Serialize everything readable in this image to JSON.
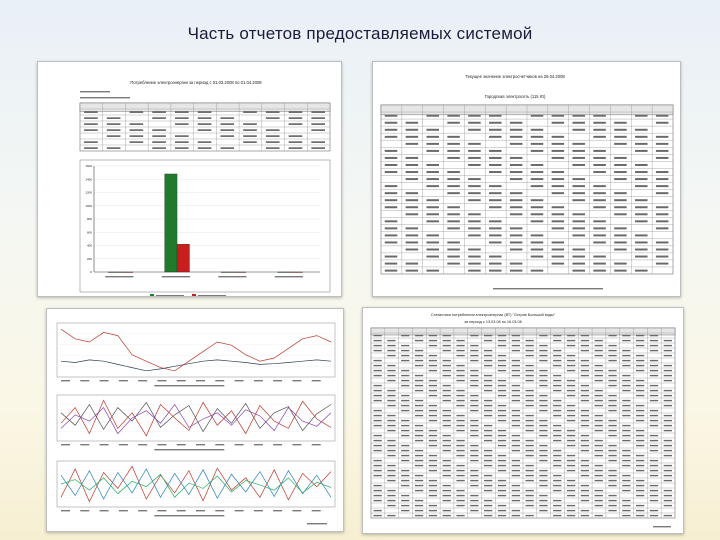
{
  "slide": {
    "title": "Часть отчетов предоставляемых системой"
  },
  "doc1": {
    "title": "Потребление электроэнергии за период с 01.03.2008 по 01.04.2008",
    "chart_data": {
      "type": "bar",
      "categories": [
        "c1",
        "c2",
        "c3",
        "c4"
      ],
      "series": [
        {
          "values": [
            0,
            1480,
            0,
            0
          ],
          "color": "#1f7a2a"
        },
        {
          "values": [
            0,
            420,
            0,
            0
          ],
          "color": "#c81e1e"
        }
      ],
      "ylim": [
        0,
        1600
      ]
    }
  },
  "doc2": {
    "title": "Текущее значение электросчетчиков на 28.04.2008",
    "subtitle": "Городская электросеть (115 Ю)"
  },
  "doc3": {
    "chart_data": [
      {
        "type": "line",
        "series": [
          {
            "values": [
              520,
              505,
              500,
              515,
              510,
              480,
              470,
              460,
              455,
              470,
              485,
              500,
              495,
              480,
              470,
              475,
              490,
              505,
              510,
              500
            ],
            "color": "#c0392b"
          },
          {
            "values": [
              470,
              468,
              472,
              470,
              465,
              460,
              455,
              458,
              462,
              466,
              470,
              472,
              470,
              468,
              465,
              466,
              468,
              470,
              472,
              470
            ],
            "color": "#2c3e50"
          }
        ]
      },
      {
        "type": "line",
        "series": [
          {
            "values": [
              40,
              55,
              30,
              62,
              35,
              50,
              28,
              58,
              45,
              33,
              60,
              38,
              52,
              30,
              57,
              42,
              35,
              61,
              44,
              36
            ],
            "color": "#c0392b"
          },
          {
            "values": [
              50,
              38,
              58,
              34,
              55,
              42,
              60,
              36,
              48,
              57,
              32,
              54,
              40,
              59,
              35,
              50,
              56,
              33,
              49,
              58
            ],
            "color": "#555555"
          },
          {
            "values": [
              35,
              48,
              42,
              55,
              30,
              45,
              52,
              40,
              58,
              36,
              44,
              50,
              38,
              53,
              47,
              33,
              55,
              42,
              37,
              50
            ],
            "color": "#8e44ad"
          }
        ]
      },
      {
        "type": "line",
        "series": [
          {
            "values": [
              30,
              62,
              25,
              58,
              40,
              65,
              28,
              55,
              35,
              60,
              26,
              63,
              38,
              52,
              30,
              61,
              27,
              57,
              42,
              59
            ],
            "color": "#c0392b"
          },
          {
            "values": [
              55,
              32,
              60,
              28,
              58,
              35,
              62,
              30,
              57,
              33,
              61,
              29,
              56,
              36,
              59,
              31,
              60,
              34,
              55,
              30
            ],
            "color": "#2980b9"
          },
          {
            "values": [
              45,
              50,
              38,
              52,
              34,
              48,
              42,
              56,
              30,
              46,
              40,
              54,
              36,
              49,
              44,
              38,
              52,
              35,
              47,
              41
            ],
            "color": "#27ae60"
          }
        ]
      }
    ]
  },
  "doc4": {
    "title": "Статистика потребления электроэнергии (ВТ) \"Остров Большой воды\"",
    "subtitle": "за период с 13.03.08 по 16.03.08"
  }
}
